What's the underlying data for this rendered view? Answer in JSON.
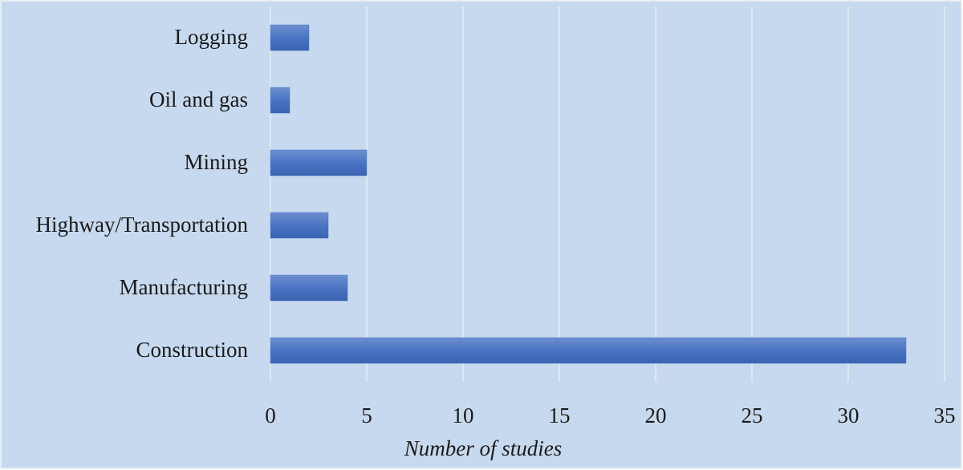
{
  "chart_data": {
    "type": "bar",
    "orientation": "horizontal",
    "categories": [
      "Logging",
      "Oil and gas",
      "Mining",
      "Highway/Transportation",
      "Manufacturing",
      "Construction"
    ],
    "values": [
      2,
      1,
      5,
      3,
      4,
      33
    ],
    "color": "#4472c4",
    "xlabel": "Number of studies",
    "xlim": [
      0,
      35
    ],
    "xticks": [
      0,
      5,
      10,
      15,
      20,
      25,
      30,
      35
    ],
    "grid": true
  }
}
